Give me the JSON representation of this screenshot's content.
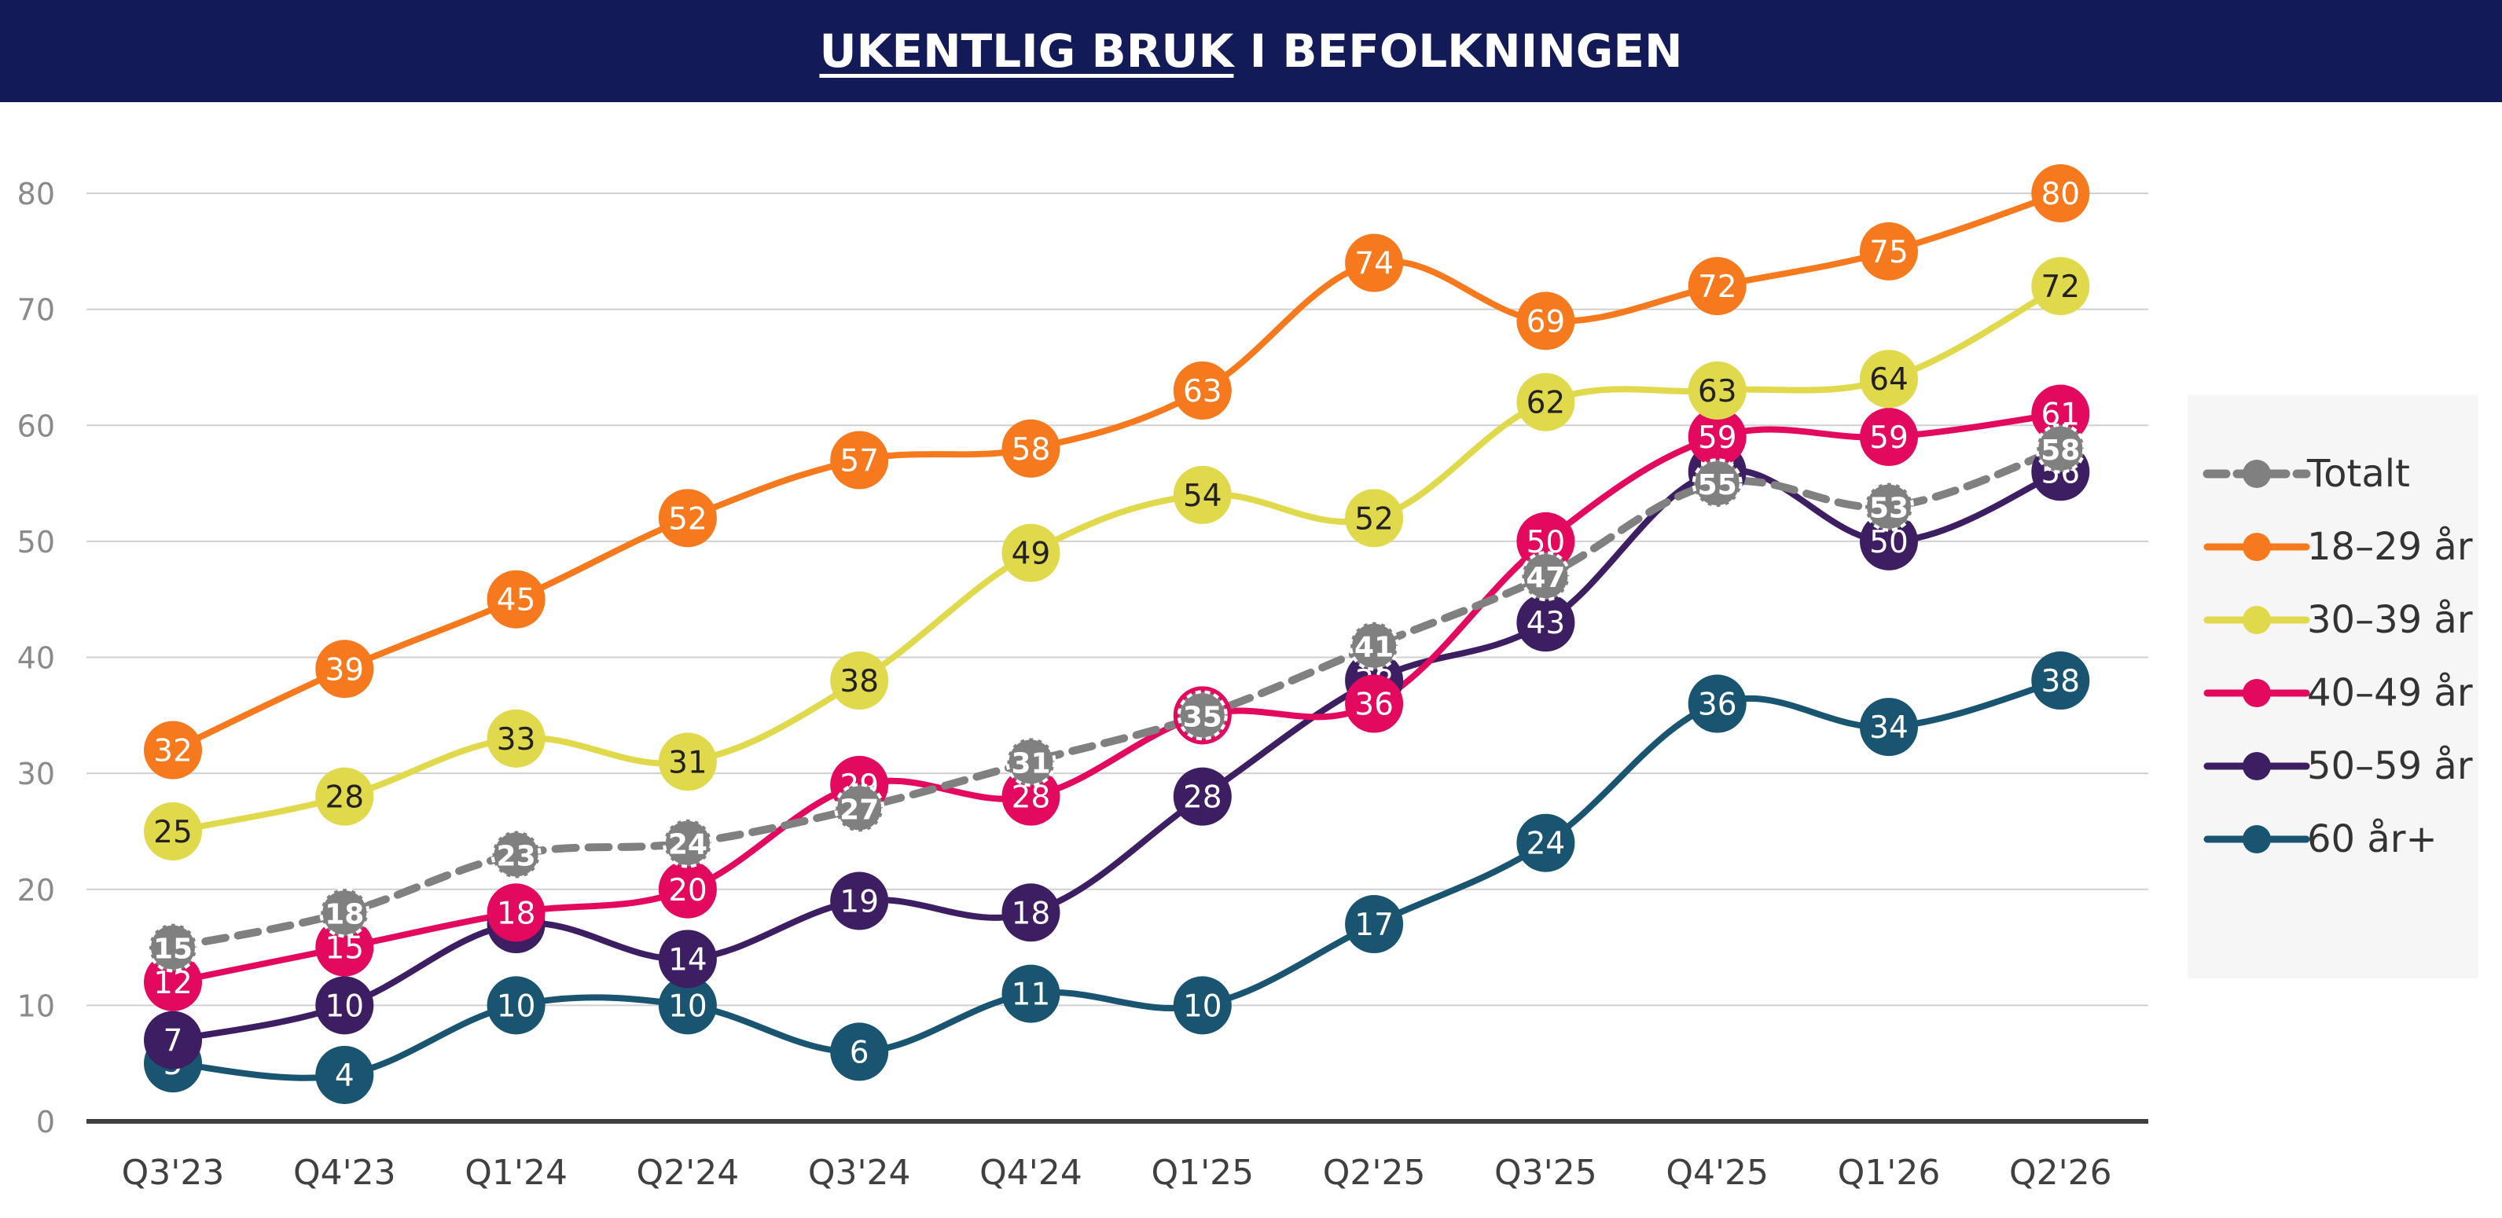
{
  "header": {
    "title_underlined": "UKENTLIG BRUK",
    "title_rest": " I BEFOLKNINGEN",
    "background": "#121a58"
  },
  "chart_data": {
    "type": "line",
    "title": "UKENTLIG BRUK I BEFOLKNINGEN",
    "xlabel": "",
    "ylabel": "",
    "ylim": [
      0,
      80
    ],
    "yticks": [
      0,
      10,
      20,
      30,
      40,
      50,
      60,
      70,
      80
    ],
    "grid": true,
    "legend_position": "right",
    "categories": [
      "Q3'23",
      "Q4'23",
      "Q1'24",
      "Q2'24",
      "Q3'24",
      "Q4'24",
      "Q1'25",
      "Q2'25",
      "Q3'25",
      "Q4'25",
      "Q1'26",
      "Q2'26"
    ],
    "series": [
      {
        "name": "Totalt",
        "color": "#808080",
        "dashed": true,
        "values": [
          15,
          18,
          23,
          24,
          27,
          31,
          35,
          41,
          47,
          55,
          53,
          58
        ]
      },
      {
        "name": "18–29 år",
        "color": "#f7791e",
        "dashed": false,
        "values": [
          32,
          39,
          45,
          52,
          57,
          58,
          63,
          74,
          69,
          72,
          75,
          80
        ]
      },
      {
        "name": "30–39 år",
        "color": "#e1d94c",
        "dashed": false,
        "values": [
          25,
          28,
          33,
          31,
          38,
          49,
          54,
          52,
          62,
          63,
          64,
          72
        ]
      },
      {
        "name": "40–49 år",
        "color": "#e3095e",
        "dashed": false,
        "values": [
          12,
          15,
          18,
          20,
          29,
          28,
          35,
          36,
          50,
          59,
          59,
          61
        ]
      },
      {
        "name": "50–59 år",
        "color": "#3d1e63",
        "dashed": false,
        "values": [
          7,
          10,
          17,
          14,
          19,
          18,
          28,
          38,
          43,
          56,
          50,
          56
        ]
      },
      {
        "name": "60 år+",
        "color": "#195470",
        "dashed": false,
        "values": [
          5,
          4,
          10,
          10,
          6,
          11,
          10,
          17,
          24,
          36,
          34,
          38
        ]
      }
    ]
  }
}
